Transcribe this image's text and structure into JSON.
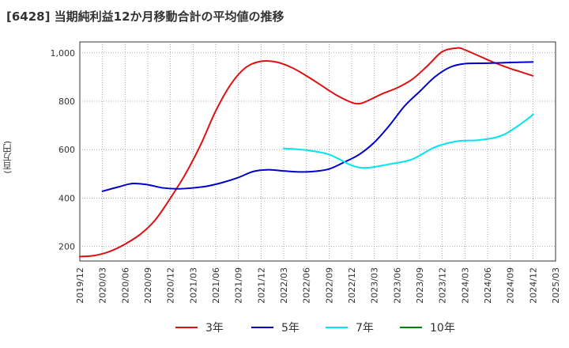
{
  "chart_data": {
    "type": "line",
    "title": "[6428]  当期純利益12か月移動合計の平均値の推移",
    "ylabel": "(百万円)",
    "xlabel": "",
    "ylim": [
      140,
      1045
    ],
    "yticks": [
      {
        "value": 200,
        "label": "200"
      },
      {
        "value": 400,
        "label": "400"
      },
      {
        "value": 600,
        "label": "600"
      },
      {
        "value": 800,
        "label": "800"
      },
      {
        "value": 1000,
        "label": "1,000"
      }
    ],
    "x_start": "2019/12",
    "x_end": "2025/03",
    "xticks": [
      "2019/12",
      "2020/03",
      "2020/06",
      "2020/09",
      "2020/12",
      "2021/03",
      "2021/06",
      "2021/09",
      "2021/12",
      "2022/03",
      "2022/06",
      "2022/09",
      "2022/12",
      "2023/03",
      "2023/06",
      "2023/09",
      "2023/12",
      "2024/03",
      "2024/06",
      "2024/09",
      "2024/12",
      "2025/03"
    ],
    "grid": true,
    "legend_position": "bottom",
    "series": [
      {
        "name": "3年",
        "color": "#dd1111",
        "points": [
          [
            "2019/12",
            158
          ],
          [
            "2020/02",
            163
          ],
          [
            "2020/04",
            180
          ],
          [
            "2020/06",
            210
          ],
          [
            "2020/08",
            250
          ],
          [
            "2020/10",
            310
          ],
          [
            "2020/12",
            400
          ],
          [
            "2021/02",
            500
          ],
          [
            "2021/04",
            620
          ],
          [
            "2021/06",
            760
          ],
          [
            "2021/08",
            870
          ],
          [
            "2021/10",
            940
          ],
          [
            "2021/12",
            965
          ],
          [
            "2022/02",
            962
          ],
          [
            "2022/04",
            940
          ],
          [
            "2022/06",
            905
          ],
          [
            "2022/08",
            865
          ],
          [
            "2022/10",
            825
          ],
          [
            "2022/12",
            795
          ],
          [
            "2023/01",
            790
          ],
          [
            "2023/02",
            800
          ],
          [
            "2023/04",
            830
          ],
          [
            "2023/06",
            855
          ],
          [
            "2023/08",
            890
          ],
          [
            "2023/10",
            945
          ],
          [
            "2023/12",
            1005
          ],
          [
            "2024/02",
            1020
          ],
          [
            "2024/03",
            1012
          ],
          [
            "2024/05",
            985
          ],
          [
            "2024/07",
            958
          ],
          [
            "2024/09",
            935
          ],
          [
            "2024/10",
            925
          ],
          [
            "2024/12",
            905
          ]
        ]
      },
      {
        "name": "5年",
        "color": "#0000cc",
        "points": [
          [
            "2020/03",
            428
          ],
          [
            "2020/05",
            445
          ],
          [
            "2020/07",
            460
          ],
          [
            "2020/09",
            455
          ],
          [
            "2020/11",
            442
          ],
          [
            "2021/01",
            438
          ],
          [
            "2021/03",
            442
          ],
          [
            "2021/05",
            450
          ],
          [
            "2021/07",
            465
          ],
          [
            "2021/09",
            485
          ],
          [
            "2021/11",
            510
          ],
          [
            "2022/01",
            517
          ],
          [
            "2022/03",
            512
          ],
          [
            "2022/05",
            508
          ],
          [
            "2022/07",
            510
          ],
          [
            "2022/09",
            520
          ],
          [
            "2022/11",
            548
          ],
          [
            "2023/01",
            580
          ],
          [
            "2023/03",
            630
          ],
          [
            "2023/05",
            700
          ],
          [
            "2023/07",
            780
          ],
          [
            "2023/09",
            840
          ],
          [
            "2023/11",
            900
          ],
          [
            "2024/01",
            940
          ],
          [
            "2024/03",
            955
          ],
          [
            "2024/06",
            957
          ],
          [
            "2024/09",
            960
          ],
          [
            "2024/12",
            962
          ]
        ]
      },
      {
        "name": "7年",
        "color": "#00e5ee",
        "points": [
          [
            "2022/03",
            605
          ],
          [
            "2022/06",
            598
          ],
          [
            "2022/09",
            580
          ],
          [
            "2022/12",
            535
          ],
          [
            "2023/02",
            525
          ],
          [
            "2023/05",
            540
          ],
          [
            "2023/08",
            560
          ],
          [
            "2023/11",
            610
          ],
          [
            "2024/02",
            635
          ],
          [
            "2024/05",
            640
          ],
          [
            "2024/08",
            660
          ],
          [
            "2024/11",
            720
          ],
          [
            "2024/12",
            745
          ]
        ]
      },
      {
        "name": "10年",
        "color": "#008000",
        "points": []
      }
    ]
  }
}
